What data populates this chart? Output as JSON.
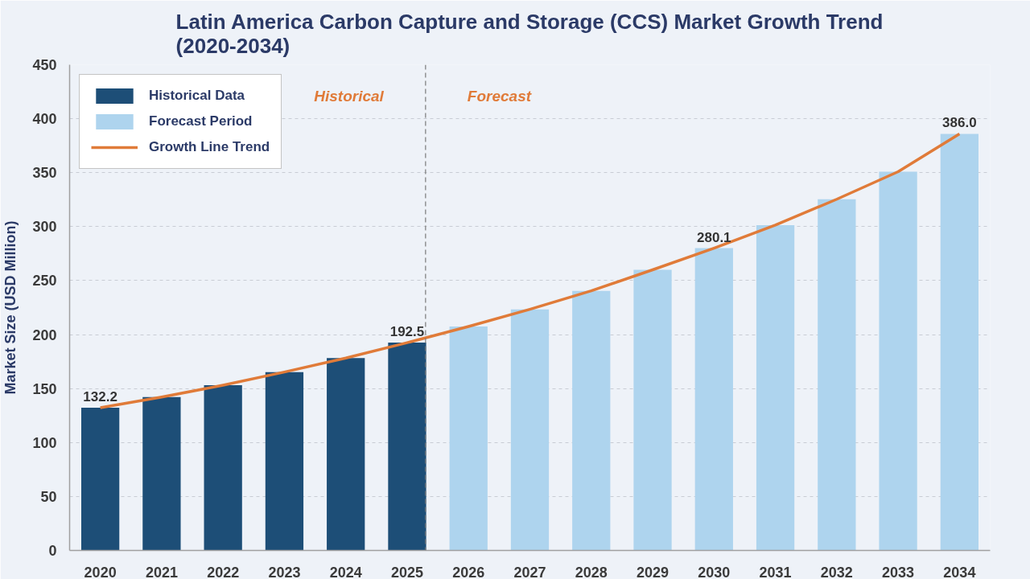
{
  "chart_data": {
    "type": "bar",
    "title": "Latin America Carbon Capture and Storage (CCS) Market Growth Trend (2020-2034)",
    "ylabel": "Market Size (USD Million)",
    "xlim": [
      2019.5,
      2034.5
    ],
    "xticks": [
      2020,
      2021,
      2022,
      2023,
      2024,
      2025,
      2026,
      2027,
      2028,
      2029,
      2030,
      2031,
      2032,
      2033,
      2034
    ],
    "ylim": [
      0,
      450
    ],
    "yticks": [
      0,
      50,
      100,
      150,
      200,
      250,
      300,
      350,
      400,
      450
    ],
    "series": [
      {
        "name": "Historical Data",
        "color": "#1d4e77",
        "x": [
          2020,
          2021,
          2022,
          2023,
          2024,
          2025
        ],
        "values": [
          132.2,
          142.1,
          153.1,
          165.3,
          178.2,
          192.5
        ],
        "value_labels": [
          "132.2",
          null,
          null,
          null,
          null,
          "192.5"
        ]
      },
      {
        "name": "Forecast Period",
        "color": "#aed4ee",
        "x": [
          2026,
          2027,
          2028,
          2029,
          2030,
          2031,
          2032,
          2033,
          2034
        ],
        "values": [
          207.5,
          223.4,
          240.5,
          260.0,
          280.1,
          301.4,
          325.4,
          350.9,
          386.0
        ],
        "value_labels": [
          null,
          null,
          null,
          null,
          "280.1",
          null,
          null,
          null,
          "386.0"
        ]
      },
      {
        "name": "Growth Line Trend",
        "type": "line",
        "color": "#e07b39",
        "x": [
          2020,
          2021,
          2022,
          2023,
          2024,
          2025,
          2026,
          2027,
          2028,
          2029,
          2030,
          2031,
          2032,
          2033,
          2034
        ],
        "values": [
          132.2,
          142.1,
          153.1,
          165.3,
          178.2,
          192.5,
          207.5,
          223.4,
          240.5,
          260.0,
          280.1,
          301.4,
          325.4,
          350.9,
          386.0
        ]
      }
    ],
    "ref_lines": [
      {
        "axis": "x",
        "value": 2025.3,
        "line_style": "dashed"
      }
    ],
    "annotations": [
      "Historical",
      "Forecast"
    ],
    "grid": "y",
    "legend": "top left"
  }
}
